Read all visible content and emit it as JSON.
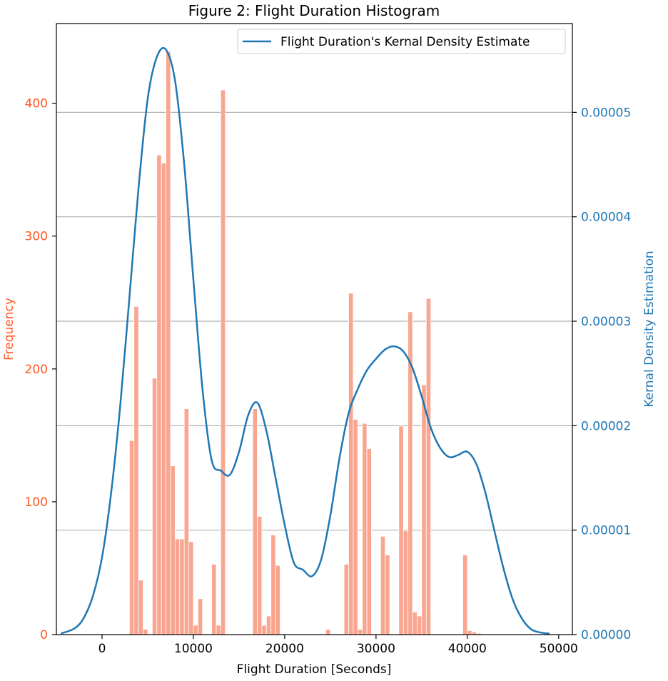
{
  "chart_data": {
    "type": "bar",
    "title": "Figure 2: Flight Duration Histogram",
    "xlabel": "Flight Duration [Seconds]",
    "ylabel": "Frequency",
    "y2label": "Kernal Density Estimation",
    "xlim": [
      -5000,
      51500
    ],
    "ylim": [
      0,
      460
    ],
    "y2lim": [
      0,
      5.85e-05
    ],
    "x_ticks": [
      0,
      10000,
      20000,
      30000,
      40000,
      50000
    ],
    "x_tick_labels": [
      "0",
      "10000",
      "20000",
      "30000",
      "40000",
      "50000"
    ],
    "y_ticks": [
      0,
      100,
      200,
      300,
      400
    ],
    "y_tick_labels": [
      "0",
      "100",
      "200",
      "300",
      "400"
    ],
    "y2_ticks": [
      0,
      1e-05,
      2e-05,
      3e-05,
      4e-05,
      5e-05
    ],
    "y2_tick_labels": [
      "0.00000",
      "0.00001",
      "0.00002",
      "0.00003",
      "0.00004",
      "0.00005"
    ],
    "grid": "horizontal lines at right-axis ticks",
    "legend_position": "top-right",
    "legend": [
      "Flight Duration's Kernal Density Estimate"
    ],
    "colors": {
      "bars": "#f9a58f",
      "kde": "#1f77b4",
      "left_axis": "#ff5722",
      "right_axis": "#1f77b4",
      "grid": "#b0b0b0"
    },
    "bin_width": 500,
    "histogram": {
      "bin_starts": [
        3000,
        3500,
        4000,
        4500,
        5500,
        6000,
        6500,
        7000,
        7500,
        8000,
        8500,
        9000,
        9500,
        10000,
        10500,
        12000,
        12500,
        13000,
        16500,
        17000,
        17500,
        18000,
        18500,
        19000,
        24500,
        26500,
        27000,
        27500,
        28000,
        28500,
        29000,
        30500,
        31000,
        32500,
        33000,
        33500,
        34000,
        34500,
        35000,
        35500,
        39500,
        40000,
        40500,
        41000
      ],
      "values": [
        146,
        247,
        41,
        4,
        193,
        361,
        355,
        439,
        127,
        72,
        72,
        170,
        70,
        7,
        27,
        53,
        7,
        410,
        170,
        89,
        7,
        14,
        75,
        52,
        4,
        53,
        257,
        162,
        4,
        159,
        140,
        74,
        60,
        157,
        78,
        243,
        17,
        14,
        188,
        253,
        60,
        3,
        2,
        1
      ]
    },
    "series": [
      {
        "name": "Flight Duration's Kernal Density Estimate",
        "type": "line",
        "x": [
          -4500,
          -3000,
          -2000,
          -1000,
          0,
          1000,
          2000,
          3000,
          4000,
          5000,
          6000,
          7000,
          8000,
          9000,
          10000,
          11000,
          12000,
          13000,
          14000,
          15000,
          16000,
          17000,
          18000,
          19000,
          20000,
          21000,
          22000,
          23000,
          24000,
          25000,
          26000,
          27000,
          28000,
          29000,
          30000,
          31000,
          32000,
          33000,
          34000,
          35000,
          36000,
          37000,
          38000,
          39000,
          40000,
          41000,
          42000,
          43000,
          44000,
          45000,
          46000,
          47000,
          48000,
          49000
        ],
        "y": [
          1e-07,
          6e-07,
          1.6e-06,
          3.7e-06,
          7.4e-06,
          1.36e-05,
          2.2e-05,
          3.23e-05,
          4.28e-05,
          5.13e-05,
          5.53e-05,
          5.6e-05,
          5.3e-05,
          4.5e-05,
          3.4e-05,
          2.35e-05,
          1.67e-05,
          1.57e-05,
          1.53e-05,
          1.75e-05,
          2.1e-05,
          2.22e-05,
          1.95e-05,
          1.5e-05,
          1.05e-05,
          6.9e-06,
          6.2e-06,
          5.6e-06,
          7.2e-06,
          1.14e-05,
          1.69e-05,
          2.12e-05,
          2.35e-05,
          2.53e-05,
          2.64e-05,
          2.73e-05,
          2.76e-05,
          2.71e-05,
          2.55e-05,
          2.28e-05,
          1.98e-05,
          1.79e-05,
          1.7e-05,
          1.72e-05,
          1.75e-05,
          1.63e-05,
          1.35e-05,
          9.8e-06,
          6.2e-06,
          3.3e-06,
          1.5e-06,
          5e-07,
          2e-07,
          1e-07
        ]
      }
    ]
  }
}
